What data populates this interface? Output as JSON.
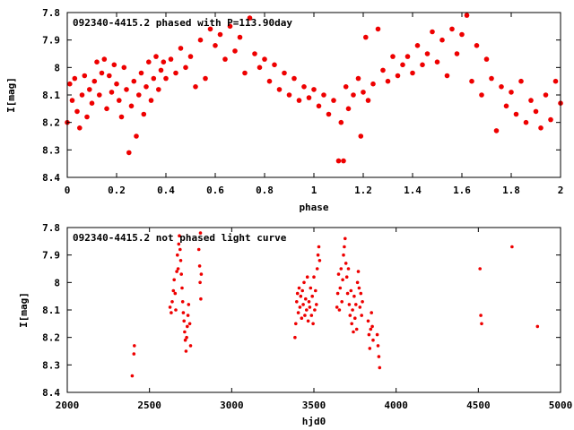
{
  "chart_data": [
    {
      "type": "scatter",
      "title": "092340-4415.2 phased with P=113.90day",
      "xlabel": "phase",
      "ylabel": "I[mag]",
      "xlim": [
        0,
        2
      ],
      "ylim": [
        8.4,
        7.8
      ],
      "y_inverted": true,
      "grid": false,
      "legend": "none",
      "color": "#ee0000",
      "xticks": [
        0,
        0.2,
        0.4,
        0.6,
        0.8,
        1,
        1.2,
        1.4,
        1.6,
        1.8,
        2
      ],
      "xtick_labels": [
        "0",
        "0.2",
        "0.4",
        "0.6",
        "0.8",
        "1",
        "1.2",
        "1.4",
        "1.6",
        "1.8",
        "2"
      ],
      "yticks": [
        7.8,
        7.9,
        8,
        8.1,
        8.2,
        8.3,
        8.4
      ],
      "ytick_labels": [
        "7.8",
        "7.9",
        "8",
        "8.1",
        "8.2",
        "8.3",
        "8.4"
      ],
      "points": [
        [
          0.0,
          8.2
        ],
        [
          0.01,
          8.06
        ],
        [
          0.02,
          8.12
        ],
        [
          0.03,
          8.04
        ],
        [
          0.04,
          8.16
        ],
        [
          0.05,
          8.22
        ],
        [
          0.06,
          8.1
        ],
        [
          0.07,
          8.03
        ],
        [
          0.08,
          8.18
        ],
        [
          0.09,
          8.08
        ],
        [
          0.1,
          8.13
        ],
        [
          0.11,
          8.05
        ],
        [
          0.12,
          7.98
        ],
        [
          0.13,
          8.1
        ],
        [
          0.14,
          8.02
        ],
        [
          0.15,
          7.97
        ],
        [
          0.16,
          8.15
        ],
        [
          0.17,
          8.03
        ],
        [
          0.18,
          8.09
        ],
        [
          0.19,
          7.99
        ],
        [
          0.2,
          8.06
        ],
        [
          0.21,
          8.12
        ],
        [
          0.22,
          8.18
        ],
        [
          0.23,
          8.0
        ],
        [
          0.24,
          8.08
        ],
        [
          0.25,
          8.31
        ],
        [
          0.26,
          8.14
        ],
        [
          0.27,
          8.05
        ],
        [
          0.28,
          8.25
        ],
        [
          0.29,
          8.1
        ],
        [
          0.3,
          8.02
        ],
        [
          0.31,
          8.17
        ],
        [
          0.32,
          8.07
        ],
        [
          0.33,
          7.98
        ],
        [
          0.34,
          8.12
        ],
        [
          0.35,
          8.04
        ],
        [
          0.36,
          7.96
        ],
        [
          0.37,
          8.08
        ],
        [
          0.38,
          8.01
        ],
        [
          0.39,
          7.98
        ],
        [
          0.4,
          8.04
        ],
        [
          0.42,
          7.97
        ],
        [
          0.44,
          8.02
        ],
        [
          0.46,
          7.93
        ],
        [
          0.48,
          8.0
        ],
        [
          0.5,
          7.96
        ],
        [
          0.52,
          8.07
        ],
        [
          0.54,
          7.9
        ],
        [
          0.56,
          8.04
        ],
        [
          0.58,
          7.86
        ],
        [
          0.6,
          7.92
        ],
        [
          0.62,
          7.88
        ],
        [
          0.64,
          7.97
        ],
        [
          0.66,
          7.85
        ],
        [
          0.68,
          7.94
        ],
        [
          0.7,
          7.89
        ],
        [
          0.72,
          8.02
        ],
        [
          0.74,
          7.82
        ],
        [
          0.76,
          7.95
        ],
        [
          0.78,
          8.0
        ],
        [
          0.8,
          7.97
        ],
        [
          0.82,
          8.05
        ],
        [
          0.84,
          7.99
        ],
        [
          0.86,
          8.08
        ],
        [
          0.88,
          8.02
        ],
        [
          0.9,
          8.1
        ],
        [
          0.92,
          8.04
        ],
        [
          0.94,
          8.12
        ],
        [
          0.96,
          8.07
        ],
        [
          0.98,
          8.11
        ],
        [
          1.0,
          8.08
        ],
        [
          1.02,
          8.14
        ],
        [
          1.04,
          8.1
        ],
        [
          1.06,
          8.17
        ],
        [
          1.08,
          8.12
        ],
        [
          1.1,
          8.34
        ],
        [
          1.11,
          8.2
        ],
        [
          1.12,
          8.34
        ],
        [
          1.13,
          8.07
        ],
        [
          1.14,
          8.15
        ],
        [
          1.16,
          8.1
        ],
        [
          1.18,
          8.04
        ],
        [
          1.19,
          8.25
        ],
        [
          1.2,
          8.09
        ],
        [
          1.21,
          7.89
        ],
        [
          1.22,
          8.12
        ],
        [
          1.24,
          8.06
        ],
        [
          1.26,
          7.86
        ],
        [
          1.28,
          8.01
        ],
        [
          1.3,
          8.05
        ],
        [
          1.32,
          7.96
        ],
        [
          1.34,
          8.03
        ],
        [
          1.36,
          7.99
        ],
        [
          1.38,
          7.96
        ],
        [
          1.4,
          8.02
        ],
        [
          1.42,
          7.92
        ],
        [
          1.44,
          7.99
        ],
        [
          1.46,
          7.95
        ],
        [
          1.48,
          7.87
        ],
        [
          1.5,
          7.98
        ],
        [
          1.52,
          7.9
        ],
        [
          1.54,
          8.03
        ],
        [
          1.56,
          7.86
        ],
        [
          1.58,
          7.95
        ],
        [
          1.6,
          7.88
        ],
        [
          1.62,
          7.81
        ],
        [
          1.64,
          8.05
        ],
        [
          1.66,
          7.92
        ],
        [
          1.68,
          8.1
        ],
        [
          1.7,
          7.97
        ],
        [
          1.72,
          8.04
        ],
        [
          1.74,
          8.23
        ],
        [
          1.76,
          8.07
        ],
        [
          1.78,
          8.14
        ],
        [
          1.8,
          8.09
        ],
        [
          1.82,
          8.17
        ],
        [
          1.84,
          8.05
        ],
        [
          1.86,
          8.2
        ],
        [
          1.88,
          8.12
        ],
        [
          1.9,
          8.16
        ],
        [
          1.92,
          8.22
        ],
        [
          1.94,
          8.1
        ],
        [
          1.96,
          8.19
        ],
        [
          1.98,
          8.05
        ],
        [
          2.0,
          8.13
        ]
      ]
    },
    {
      "type": "scatter",
      "title": "092340-4415.2 not phased light curve",
      "xlabel": "hjd0",
      "ylabel": "I[mag]",
      "xlim": [
        2000,
        5000
      ],
      "ylim": [
        8.4,
        7.8
      ],
      "y_inverted": true,
      "grid": false,
      "legend": "none",
      "color": "#ee0000",
      "xticks": [
        2000,
        2500,
        3000,
        3500,
        4000,
        4500,
        5000
      ],
      "xtick_labels": [
        "2000",
        "2500",
        "3000",
        "3500",
        "4000",
        "4500",
        "5000"
      ],
      "yticks": [
        7.8,
        7.9,
        8,
        8.1,
        8.2,
        8.3,
        8.4
      ],
      "ytick_labels": [
        "7.8",
        "7.9",
        "8",
        "8.1",
        "8.2",
        "8.3",
        "8.4"
      ],
      "points": [
        [
          2395,
          8.34
        ],
        [
          2405,
          8.26
        ],
        [
          2408,
          8.23
        ],
        [
          2625,
          8.09
        ],
        [
          2632,
          8.11
        ],
        [
          2638,
          8.07
        ],
        [
          2645,
          8.03
        ],
        [
          2650,
          7.99
        ],
        [
          2656,
          8.04
        ],
        [
          2660,
          8.1
        ],
        [
          2666,
          7.96
        ],
        [
          2670,
          7.9
        ],
        [
          2674,
          7.95
        ],
        [
          2678,
          7.86
        ],
        [
          2682,
          7.83
        ],
        [
          2686,
          7.88
        ],
        [
          2690,
          7.92
        ],
        [
          2694,
          7.97
        ],
        [
          2698,
          8.02
        ],
        [
          2702,
          8.07
        ],
        [
          2706,
          8.11
        ],
        [
          2710,
          8.14
        ],
        [
          2714,
          8.18
        ],
        [
          2718,
          8.21
        ],
        [
          2722,
          8.25
        ],
        [
          2726,
          8.2
        ],
        [
          2730,
          8.16
        ],
        [
          2734,
          8.12
        ],
        [
          2738,
          8.08
        ],
        [
          2745,
          8.15
        ],
        [
          2750,
          8.23
        ],
        [
          2800,
          7.88
        ],
        [
          2805,
          7.94
        ],
        [
          2808,
          8.0
        ],
        [
          2810,
          7.82
        ],
        [
          2812,
          8.06
        ],
        [
          2815,
          7.97
        ],
        [
          3385,
          8.2
        ],
        [
          3390,
          8.15
        ],
        [
          3395,
          8.07
        ],
        [
          3400,
          8.04
        ],
        [
          3405,
          8.11
        ],
        [
          3410,
          8.02
        ],
        [
          3415,
          8.09
        ],
        [
          3420,
          8.05
        ],
        [
          3425,
          8.13
        ],
        [
          3430,
          8.03
        ],
        [
          3435,
          8.08
        ],
        [
          3440,
          8.0
        ],
        [
          3445,
          8.12
        ],
        [
          3450,
          8.06
        ],
        [
          3455,
          8.1
        ],
        [
          3460,
          7.98
        ],
        [
          3465,
          8.14
        ],
        [
          3470,
          8.07
        ],
        [
          3475,
          8.09
        ],
        [
          3480,
          8.02
        ],
        [
          3485,
          8.12
        ],
        [
          3490,
          8.05
        ],
        [
          3495,
          8.15
        ],
        [
          3500,
          7.98
        ],
        [
          3505,
          8.1
        ],
        [
          3510,
          8.03
        ],
        [
          3515,
          8.08
        ],
        [
          3520,
          7.95
        ],
        [
          3525,
          7.9
        ],
        [
          3530,
          7.87
        ],
        [
          3535,
          7.92
        ],
        [
          3640,
          8.09
        ],
        [
          3645,
          8.04
        ],
        [
          3650,
          7.97
        ],
        [
          3655,
          8.1
        ],
        [
          3660,
          8.02
        ],
        [
          3665,
          7.95
        ],
        [
          3670,
          8.07
        ],
        [
          3675,
          7.99
        ],
        [
          3680,
          7.9
        ],
        [
          3685,
          7.87
        ],
        [
          3690,
          7.84
        ],
        [
          3695,
          7.93
        ],
        [
          3700,
          7.98
        ],
        [
          3705,
          8.04
        ],
        [
          3710,
          7.95
        ],
        [
          3715,
          8.08
        ],
        [
          3720,
          8.12
        ],
        [
          3725,
          8.03
        ],
        [
          3730,
          8.15
        ],
        [
          3735,
          8.1
        ],
        [
          3740,
          8.18
        ],
        [
          3745,
          8.05
        ],
        [
          3750,
          8.13
        ],
        [
          3755,
          8.08
        ],
        [
          3760,
          8.17
        ],
        [
          3765,
          8.0
        ],
        [
          3770,
          7.96
        ],
        [
          3775,
          8.02
        ],
        [
          3780,
          8.09
        ],
        [
          3785,
          8.04
        ],
        [
          3790,
          8.12
        ],
        [
          3795,
          8.07
        ],
        [
          3830,
          8.14
        ],
        [
          3835,
          8.19
        ],
        [
          3840,
          8.24
        ],
        [
          3845,
          8.17
        ],
        [
          3850,
          8.11
        ],
        [
          3855,
          8.16
        ],
        [
          3860,
          8.21
        ],
        [
          3885,
          8.19
        ],
        [
          3890,
          8.23
        ],
        [
          3895,
          8.27
        ],
        [
          3900,
          8.31
        ],
        [
          4510,
          7.95
        ],
        [
          4515,
          8.12
        ],
        [
          4520,
          8.15
        ],
        [
          4705,
          7.87
        ],
        [
          4860,
          8.16
        ]
      ]
    }
  ]
}
